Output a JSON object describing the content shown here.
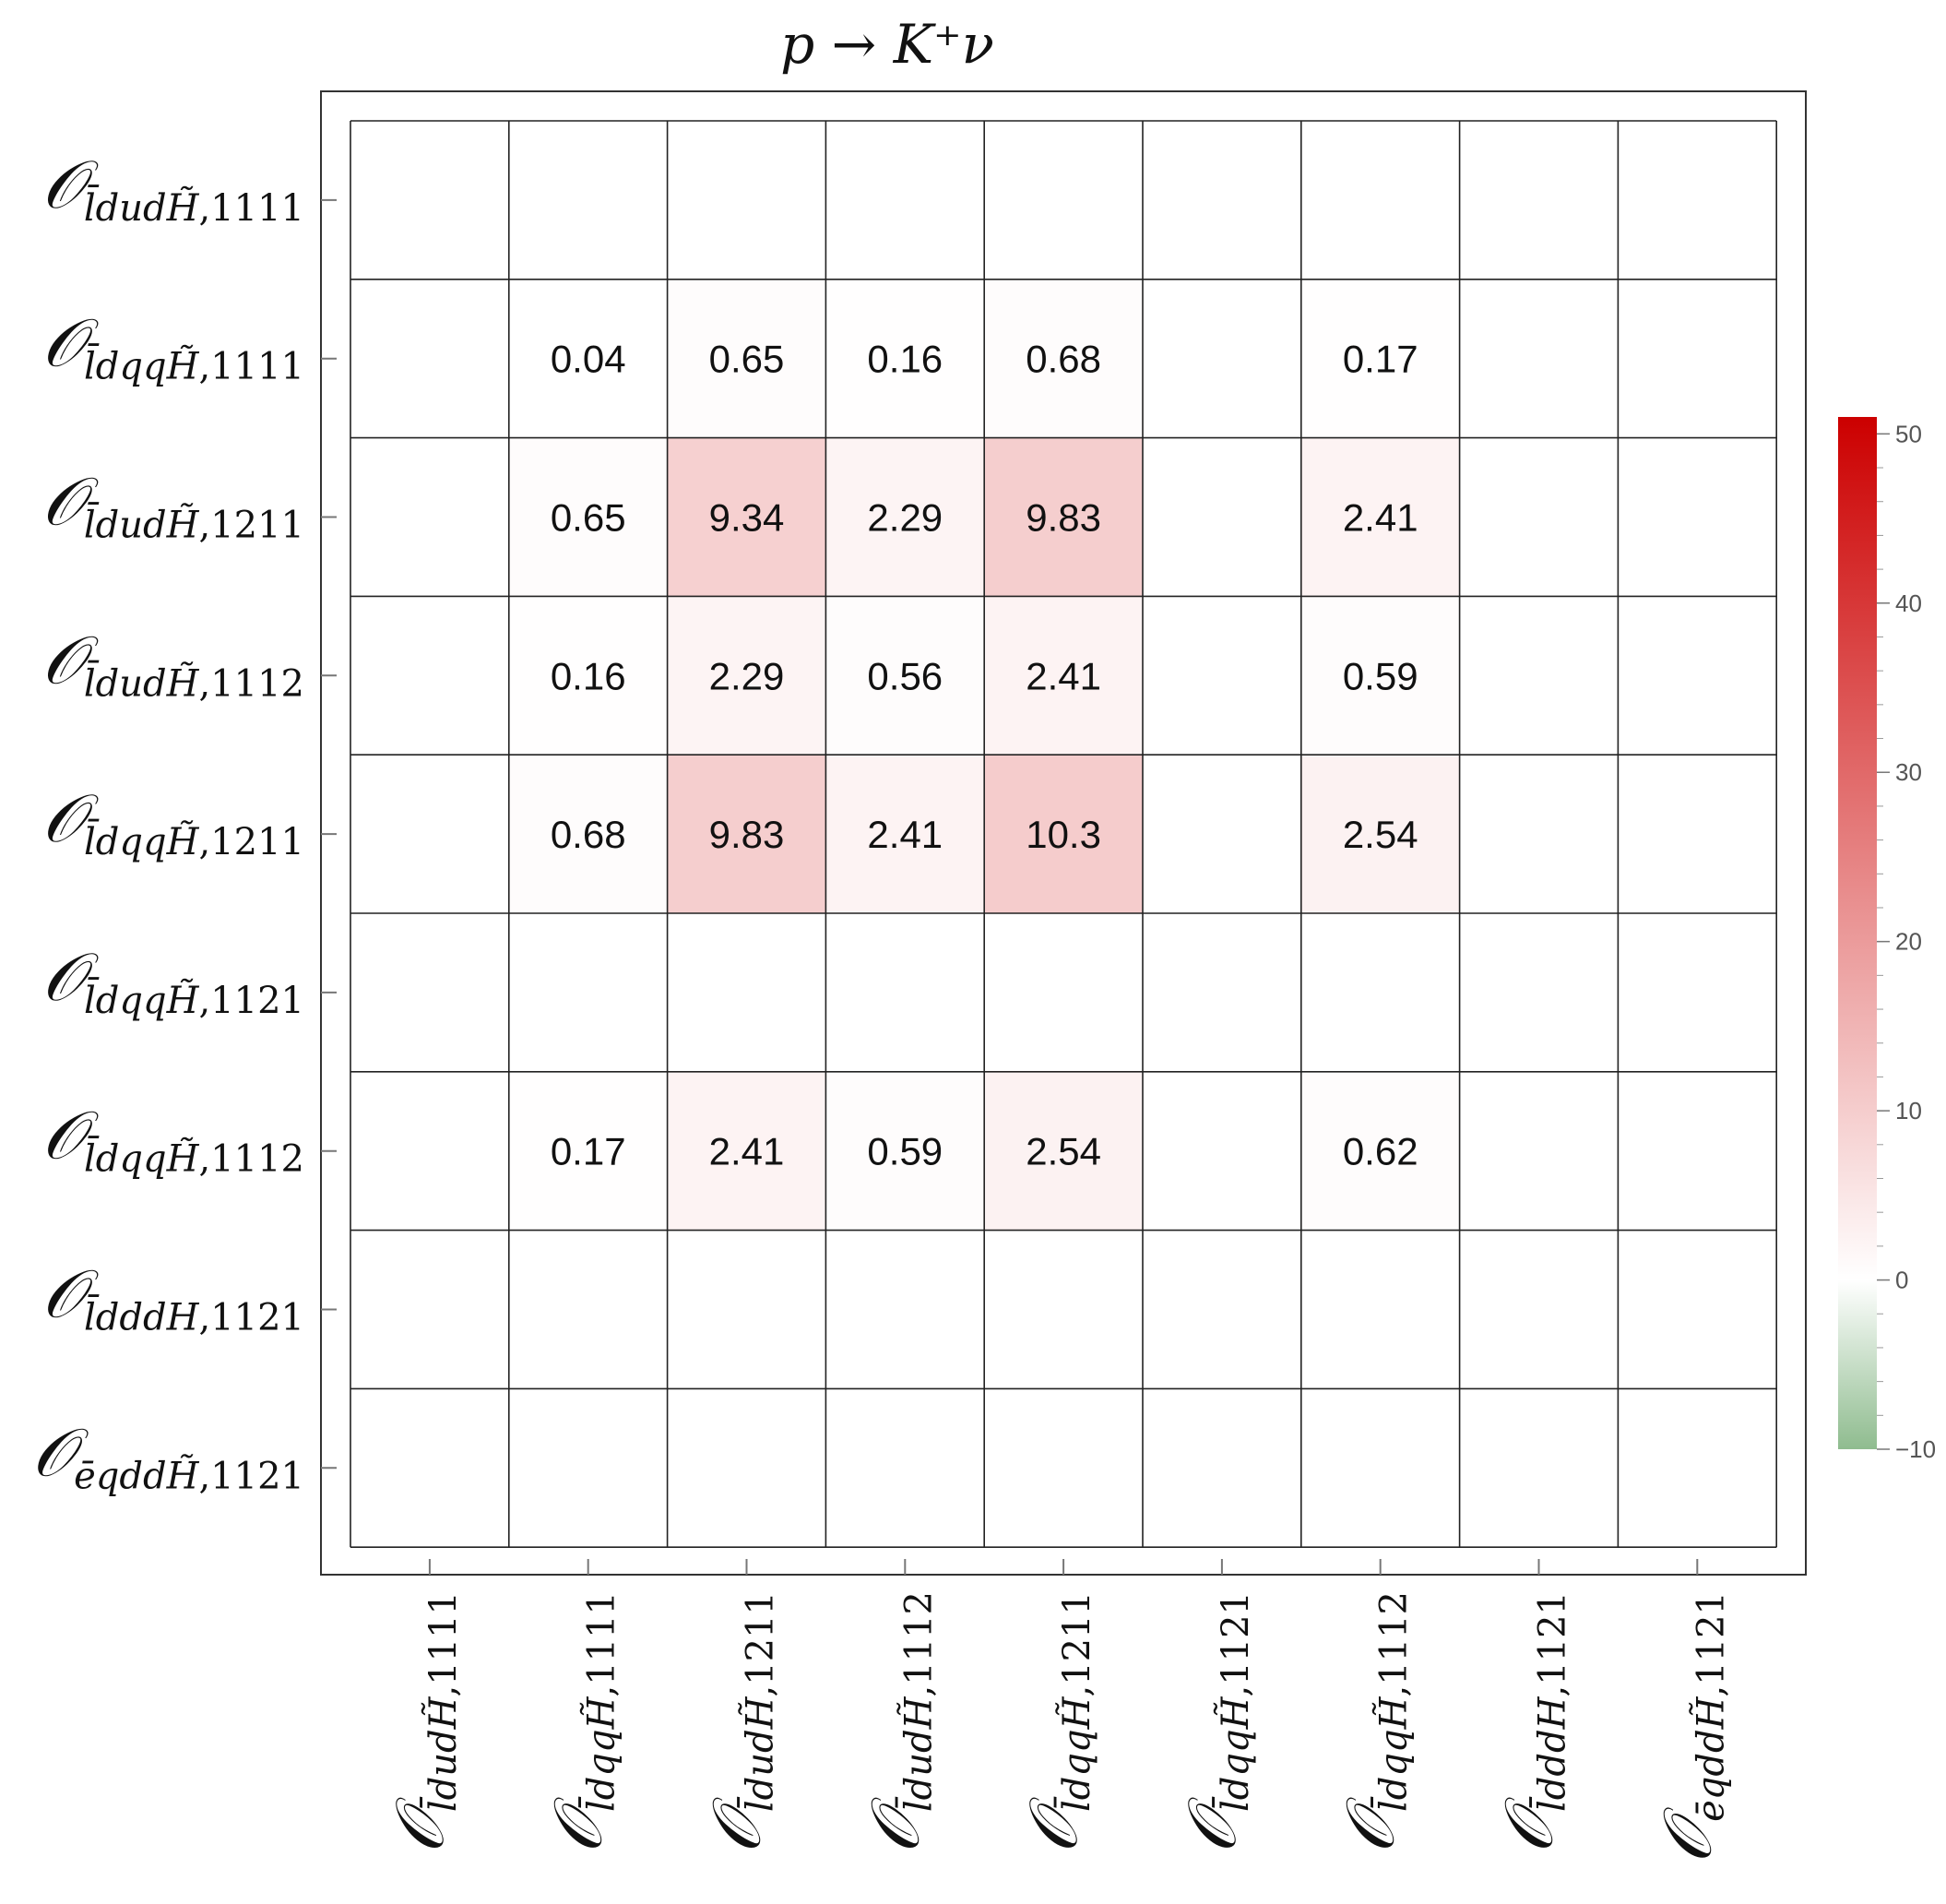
{
  "chart_data": {
    "type": "heatmap",
    "title": "p → K⁺ν",
    "row_labels": [
      {
        "base": "𝒪",
        "sub": "l̄dudH̃",
        "idx": "1111"
      },
      {
        "base": "𝒪",
        "sub": "l̄dqqH̃",
        "idx": "1111"
      },
      {
        "base": "𝒪",
        "sub": "l̄dudH̃",
        "idx": "1211"
      },
      {
        "base": "𝒪",
        "sub": "l̄dudH̃",
        "idx": "1112"
      },
      {
        "base": "𝒪",
        "sub": "l̄dqqH̃",
        "idx": "1211"
      },
      {
        "base": "𝒪",
        "sub": "l̄dqqH̃",
        "idx": "1121"
      },
      {
        "base": "𝒪",
        "sub": "l̄dqqH̃",
        "idx": "1112"
      },
      {
        "base": "𝒪",
        "sub": "l̄dddH",
        "idx": "1121"
      },
      {
        "base": "𝒪",
        "sub": "ēqddH̃",
        "idx": "1121"
      }
    ],
    "col_labels": [
      {
        "base": "𝒪",
        "sub": "l̄dudH̃",
        "idx": "1111"
      },
      {
        "base": "𝒪",
        "sub": "l̄dqqH̃",
        "idx": "1111"
      },
      {
        "base": "𝒪",
        "sub": "l̄dudH̃",
        "idx": "1211"
      },
      {
        "base": "𝒪",
        "sub": "l̄dudH̃",
        "idx": "1112"
      },
      {
        "base": "𝒪",
        "sub": "l̄dqqH̃",
        "idx": "1211"
      },
      {
        "base": "𝒪",
        "sub": "l̄dqqH̃",
        "idx": "1121"
      },
      {
        "base": "𝒪",
        "sub": "l̄dqqH̃",
        "idx": "1112"
      },
      {
        "base": "𝒪",
        "sub": "l̄dddH",
        "idx": "1121"
      },
      {
        "base": "𝒪",
        "sub": "ēqddH̃",
        "idx": "1121"
      }
    ],
    "values": [
      [
        null,
        null,
        null,
        null,
        null,
        null,
        null,
        null,
        null
      ],
      [
        null,
        0.04,
        0.65,
        0.16,
        0.68,
        null,
        0.17,
        null,
        null
      ],
      [
        null,
        0.65,
        9.34,
        2.29,
        9.83,
        null,
        2.41,
        null,
        null
      ],
      [
        null,
        0.16,
        2.29,
        0.56,
        2.41,
        null,
        0.59,
        null,
        null
      ],
      [
        null,
        0.68,
        9.83,
        2.41,
        10.3,
        null,
        2.54,
        null,
        null
      ],
      [
        null,
        null,
        null,
        null,
        null,
        null,
        null,
        null,
        null
      ],
      [
        null,
        0.17,
        2.41,
        0.59,
        2.54,
        null,
        0.62,
        null,
        null
      ],
      [
        null,
        null,
        null,
        null,
        null,
        null,
        null,
        null,
        null
      ],
      [
        null,
        null,
        null,
        null,
        null,
        null,
        null,
        null,
        null
      ]
    ],
    "value_labels": [
      [
        "",
        "",
        "",
        "",
        "",
        "",
        "",
        "",
        ""
      ],
      [
        "",
        "0.04",
        "0.65",
        "0.16",
        "0.68",
        "",
        "0.17",
        "",
        ""
      ],
      [
        "",
        "0.65",
        "9.34",
        "2.29",
        "9.83",
        "",
        "2.41",
        "",
        ""
      ],
      [
        "",
        "0.16",
        "2.29",
        "0.56",
        "2.41",
        "",
        "0.59",
        "",
        ""
      ],
      [
        "",
        "0.68",
        "9.83",
        "2.41",
        "10.3",
        "",
        "2.54",
        "",
        ""
      ],
      [
        "",
        "",
        "",
        "",
        "",
        "",
        "",
        "",
        ""
      ],
      [
        "",
        "0.17",
        "2.41",
        "0.59",
        "2.54",
        "",
        "0.62",
        "",
        ""
      ],
      [
        "",
        "",
        "",
        "",
        "",
        "",
        "",
        "",
        ""
      ],
      [
        "",
        "",
        "",
        "",
        "",
        "",
        "",
        "",
        ""
      ]
    ],
    "colorbar": {
      "min": -10,
      "max": 51,
      "ticks": [
        -10,
        0,
        10,
        20,
        30,
        40,
        50
      ],
      "tick_labels": [
        "−10",
        "0",
        "10",
        "20",
        "30",
        "40",
        "50"
      ],
      "color_negative": "#8fbc8f",
      "color_zero": "#ffffff",
      "color_positive": "#cc0000"
    }
  }
}
